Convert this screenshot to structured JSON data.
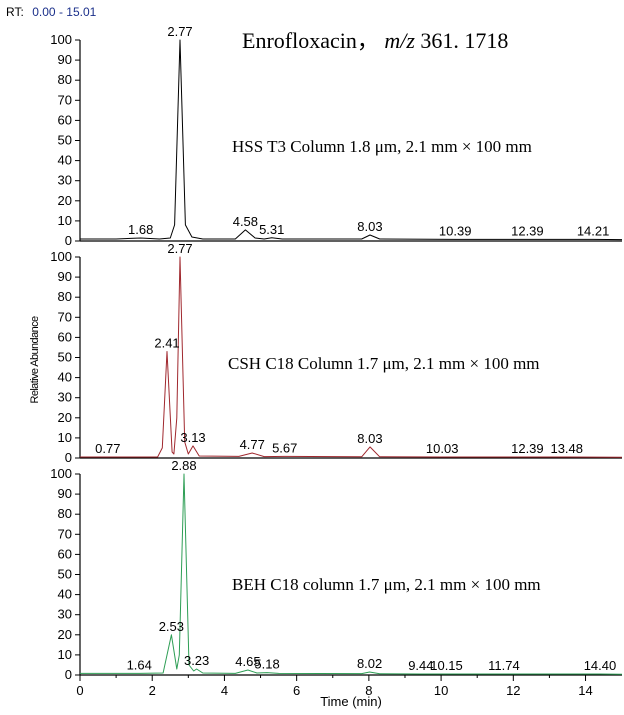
{
  "header": {
    "rt_prefix": "RT:",
    "rt_range": "0.00 - 15.01",
    "rt_color": "#1a2f8a"
  },
  "title": {
    "compound": "Enrofloxacin，",
    "mz_label": "m/z",
    "mz_value": " 361. 1718"
  },
  "chart_data": {
    "type": "line",
    "ylabel": "Relative Abundance",
    "xlabel": "Time (min)",
    "xlim": [
      0,
      15.01
    ],
    "ylim": [
      0,
      100
    ],
    "x_ticks": [
      0,
      2,
      4,
      6,
      8,
      10,
      12,
      14
    ],
    "x_tick_labels": [
      "0",
      "2",
      "4",
      "6",
      "8",
      "10",
      "12",
      "14"
    ],
    "y_ticks": [
      0,
      10,
      20,
      30,
      40,
      50,
      60,
      70,
      80,
      90,
      100
    ],
    "y_tick_labels": [
      "0",
      "10",
      "20",
      "30",
      "40",
      "50",
      "60",
      "70",
      "80",
      "90",
      "100"
    ],
    "panels": [
      {
        "label": "HSS T3 Column 1.8 μm, 2.1 mm × 100 mm",
        "color": "#000000",
        "peaks": [
          {
            "label": "1.68",
            "x": 1.68,
            "y": 1.5
          },
          {
            "label": "2.77",
            "x": 2.77,
            "y": 100
          },
          {
            "label": "4.58",
            "x": 4.58,
            "y": 5.5
          },
          {
            "label": "5.31",
            "x": 5.31,
            "y": 1.5
          },
          {
            "label": "8.03",
            "x": 8.03,
            "y": 3
          },
          {
            "label": "10.39",
            "x": 10.39,
            "y": 0.8
          },
          {
            "label": "12.39",
            "x": 12.39,
            "y": 0.8
          },
          {
            "label": "14.21",
            "x": 14.21,
            "y": 0.8
          }
        ],
        "trace": [
          [
            0,
            1
          ],
          [
            1.0,
            1
          ],
          [
            1.68,
            1.5
          ],
          [
            2.2,
            1
          ],
          [
            2.5,
            1.5
          ],
          [
            2.62,
            8
          ],
          [
            2.77,
            100
          ],
          [
            2.92,
            8
          ],
          [
            3.1,
            2
          ],
          [
            3.4,
            1
          ],
          [
            4.3,
            1
          ],
          [
            4.58,
            5.5
          ],
          [
            4.85,
            1.5
          ],
          [
            5.1,
            1
          ],
          [
            5.31,
            1.6
          ],
          [
            5.6,
            1
          ],
          [
            7.8,
            1
          ],
          [
            8.03,
            3
          ],
          [
            8.3,
            1
          ],
          [
            10.39,
            0.8
          ],
          [
            12.39,
            0.8
          ],
          [
            14.21,
            0.8
          ],
          [
            15.01,
            0.7
          ]
        ]
      },
      {
        "label": "CSH C18 Column 1.7 μm, 2.1 mm × 100 mm",
        "color": "#a0282e",
        "peaks": [
          {
            "label": "0.77",
            "x": 0.77,
            "y": 0.5
          },
          {
            "label": "2.41",
            "x": 2.41,
            "y": 53
          },
          {
            "label": "2.77",
            "x": 2.77,
            "y": 100
          },
          {
            "label": "3.13",
            "x": 3.13,
            "y": 6
          },
          {
            "label": "4.77",
            "x": 4.77,
            "y": 2.5
          },
          {
            "label": "5.67",
            "x": 5.67,
            "y": 0.8
          },
          {
            "label": "8.03",
            "x": 8.03,
            "y": 5.5
          },
          {
            "label": "10.03",
            "x": 10.03,
            "y": 0.5
          },
          {
            "label": "12.39",
            "x": 12.39,
            "y": 0.5
          },
          {
            "label": "13.48",
            "x": 13.48,
            "y": 0.5
          }
        ],
        "trace": [
          [
            0,
            0.5
          ],
          [
            0.77,
            0.5
          ],
          [
            2.15,
            0.5
          ],
          [
            2.28,
            5
          ],
          [
            2.41,
            53
          ],
          [
            2.55,
            3
          ],
          [
            2.6,
            2
          ],
          [
            2.68,
            20
          ],
          [
            2.77,
            100
          ],
          [
            2.9,
            8
          ],
          [
            3.0,
            2
          ],
          [
            3.13,
            6
          ],
          [
            3.3,
            1
          ],
          [
            4.4,
            0.8
          ],
          [
            4.77,
            2.5
          ],
          [
            5.1,
            0.7
          ],
          [
            5.67,
            0.8
          ],
          [
            7.8,
            0.6
          ],
          [
            8.03,
            5.5
          ],
          [
            8.3,
            0.6
          ],
          [
            10.03,
            0.5
          ],
          [
            12.39,
            0.5
          ],
          [
            13.48,
            0.5
          ],
          [
            15.01,
            0.4
          ]
        ]
      },
      {
        "label": "BEH C18 column 1.7 μm, 2.1 mm × 100 mm",
        "color": "#2e9e55",
        "peaks": [
          {
            "label": "1.64",
            "x": 1.64,
            "y": 0.8
          },
          {
            "label": "2.53",
            "x": 2.53,
            "y": 20
          },
          {
            "label": "2.88",
            "x": 2.88,
            "y": 100
          },
          {
            "label": "3.23",
            "x": 3.23,
            "y": 3
          },
          {
            "label": "4.65",
            "x": 4.65,
            "y": 2.5
          },
          {
            "label": "5.18",
            "x": 5.18,
            "y": 1.2
          },
          {
            "label": "8.02",
            "x": 8.02,
            "y": 1.5
          },
          {
            "label": "9.44",
            "x": 9.44,
            "y": 0.5
          },
          {
            "label": "10.15",
            "x": 10.15,
            "y": 0.5
          },
          {
            "label": "11.74",
            "x": 11.74,
            "y": 0.5
          },
          {
            "label": "14.40",
            "x": 14.4,
            "y": 0.5
          }
        ],
        "trace": [
          [
            0,
            0.8
          ],
          [
            1.64,
            0.8
          ],
          [
            2.3,
            1
          ],
          [
            2.53,
            20
          ],
          [
            2.68,
            3
          ],
          [
            2.75,
            10
          ],
          [
            2.88,
            100
          ],
          [
            3.02,
            5
          ],
          [
            3.15,
            2
          ],
          [
            3.23,
            3
          ],
          [
            3.4,
            1
          ],
          [
            4.3,
            0.8
          ],
          [
            4.65,
            2.5
          ],
          [
            4.9,
            1
          ],
          [
            5.18,
            1.2
          ],
          [
            5.5,
            0.8
          ],
          [
            7.8,
            0.7
          ],
          [
            8.02,
            1.5
          ],
          [
            8.3,
            0.6
          ],
          [
            9.44,
            0.5
          ],
          [
            10.15,
            0.5
          ],
          [
            11.74,
            0.5
          ],
          [
            14.4,
            0.5
          ],
          [
            15.01,
            0.4
          ]
        ]
      }
    ]
  }
}
